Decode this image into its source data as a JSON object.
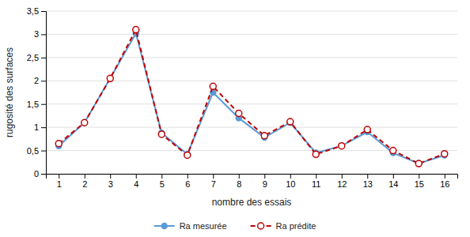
{
  "chart_data": {
    "type": "line",
    "xlabel": "nombre des essais",
    "ylabel": "rugosité des surfaces",
    "x": [
      1,
      2,
      3,
      4,
      5,
      6,
      7,
      8,
      9,
      10,
      11,
      12,
      13,
      14,
      15,
      16
    ],
    "xlim": [
      0.5,
      16.5
    ],
    "xticks": [
      1,
      2,
      3,
      4,
      5,
      6,
      7,
      8,
      9,
      10,
      11,
      12,
      13,
      14,
      15,
      16
    ],
    "ylim": [
      0,
      3.5
    ],
    "yticks": [
      0,
      {
        "value": 0.5,
        "label": "0,5"
      },
      1,
      {
        "value": 1.5,
        "label": "1,5"
      },
      2,
      {
        "value": 2.5,
        "label": "2,5"
      },
      3,
      {
        "value": 3.5,
        "label": "3,5"
      }
    ],
    "grid": "y",
    "legend": "bottom",
    "series": [
      {
        "name": "Ra mesurée",
        "color": "#5b9bd5",
        "marker": "circle",
        "line_style": "solid",
        "values": [
          0.6,
          1.1,
          2.05,
          3.02,
          0.88,
          0.42,
          1.75,
          1.2,
          0.78,
          1.1,
          0.45,
          0.6,
          0.9,
          0.45,
          0.22,
          0.4
        ]
      },
      {
        "name": "Ra prédite",
        "color": "#c00000",
        "marker": "open-circle",
        "line_style": "dashed",
        "values": [
          0.65,
          1.1,
          2.05,
          3.1,
          0.85,
          0.4,
          1.88,
          1.3,
          0.82,
          1.12,
          0.42,
          0.6,
          0.95,
          0.5,
          0.22,
          0.43
        ]
      }
    ]
  }
}
